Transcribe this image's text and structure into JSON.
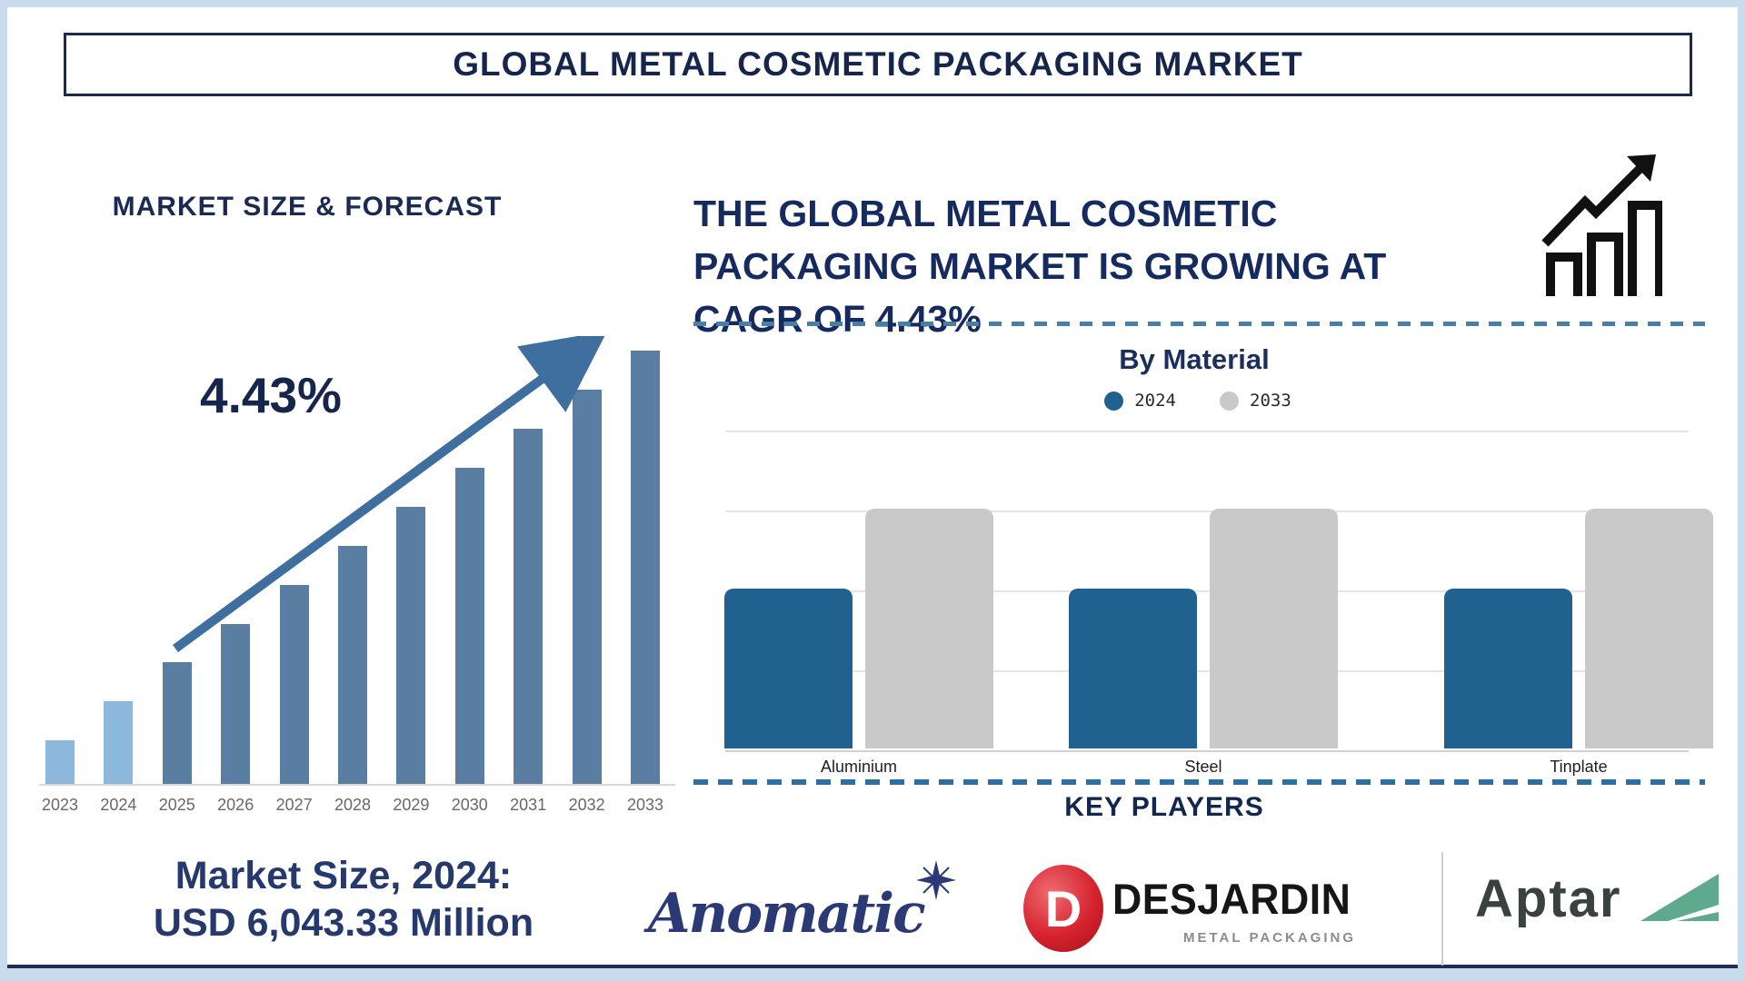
{
  "header": {
    "title": "GLOBAL METAL COSMETIC PACKAGING MARKET"
  },
  "left_panel": {
    "section_title": "MARKET SIZE & FORECAST",
    "cagr_label": "4.43%",
    "market_size": {
      "line1": "Market Size, 2024:",
      "line2": "USD 6,043.33 Million"
    }
  },
  "right_panel": {
    "headline_lines": [
      "THE GLOBAL METAL COSMETIC",
      "PACKAGING MARKET IS GROWING AT",
      "CAGR OF 4.43%"
    ],
    "by_material_title": "By Material",
    "key_players_title": "KEY PLAYERS",
    "players": {
      "anomatic": {
        "name": "Anomatic"
      },
      "desjardin": {
        "name": "DESJARDIN",
        "subtitle": "METAL PACKAGING",
        "monogram": "D"
      },
      "aptar": {
        "name": "Aptar"
      }
    }
  },
  "colors": {
    "navy": "#16254c",
    "forecast_bar_highlight": "#8cb8de",
    "forecast_bar": "#5a7ea1",
    "trend_arrow": "#3e6f9e",
    "bar_2024": "#20618f",
    "bar_2033": "#c9c9c9",
    "dashed_line": "#4a7fa5",
    "anomatic_navy": "#2b3a75",
    "desjardin_red": "#d6232e",
    "aptar_green": "#5fa98e"
  },
  "chart_data": [
    {
      "type": "bar",
      "title": "MARKET SIZE & FORECAST",
      "x": [
        "2023",
        "2024",
        "2025",
        "2026",
        "2027",
        "2028",
        "2029",
        "2030",
        "2031",
        "2032",
        "2033"
      ],
      "values_relative": [
        0.1,
        0.19,
        0.28,
        0.37,
        0.46,
        0.55,
        0.64,
        0.73,
        0.82,
        0.91,
        1.0
      ],
      "highlight_years": [
        "2023",
        "2024"
      ],
      "annotation": "4.43%",
      "y_axis_visible": false,
      "grid": false,
      "note": "Bar heights are relative fractions of the tallest (2033) bar; no numeric y-axis is shown. 2023 and 2024 bars are light blue, later years steel blue, with an upward trend arrow."
    },
    {
      "type": "bar",
      "title": "By Material",
      "categories": [
        "Aluminium",
        "Steel",
        "Tinplate"
      ],
      "series": [
        {
          "name": "2024",
          "color": "#20618f",
          "values": [
            2,
            2,
            2
          ]
        },
        {
          "name": "2033",
          "color": "#c9c9c9",
          "values": [
            3,
            3,
            3
          ]
        }
      ],
      "ylim": [
        0,
        4
      ],
      "y_axis_visible": false,
      "grid": true,
      "legend_position": "top",
      "note": "No numeric y-axis shown; values estimated in gridline units (4 equal gridline intervals)."
    }
  ]
}
